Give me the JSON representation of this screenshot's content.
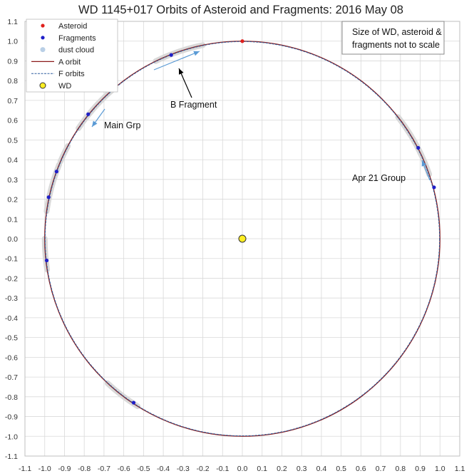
{
  "chart_data": {
    "type": "scatter",
    "title": "WD 1145+017 Orbits of Asteroid and Fragments: 2016 May 08",
    "xlim": [
      -1.1,
      1.1
    ],
    "ylim": [
      -1.1,
      1.1
    ],
    "x_ticks": [
      "-1.1",
      "-1.0",
      "-0.9",
      "-0.8",
      "-0.7",
      "-0.6",
      "-0.5",
      "-0.4",
      "-0.3",
      "-0.2",
      "-0.1",
      "0.0",
      "0.1",
      "0.2",
      "0.3",
      "0.4",
      "0.5",
      "0.6",
      "0.7",
      "0.8",
      "0.9",
      "1.0",
      "1.1"
    ],
    "y_ticks": [
      "-1.1",
      "-1.0",
      "-0.9",
      "-0.8",
      "-0.7",
      "-0.6",
      "-0.5",
      "-0.4",
      "-0.3",
      "-0.2",
      "-0.1",
      "0.0",
      "0.1",
      "0.2",
      "0.3",
      "0.4",
      "0.5",
      "0.6",
      "0.7",
      "0.8",
      "0.9",
      "1.0",
      "1.1"
    ],
    "grid": true,
    "legend_position": "top-left",
    "legend": [
      {
        "label": "Asteroid",
        "kind": "dot",
        "color": "#e0201c"
      },
      {
        "label": "Fragments",
        "kind": "dot",
        "color": "#1f1fc8"
      },
      {
        "label": "dust cloud",
        "kind": "dot",
        "color": "#b9cfe6"
      },
      {
        "label": "A orbit",
        "kind": "line",
        "color": "#8b1a1a"
      },
      {
        "label": "F orbits",
        "kind": "dash",
        "color": "#2f5f9f"
      },
      {
        "label": "WD",
        "kind": "wd",
        "color": "#ffee22"
      }
    ],
    "orbit_radius": 1.0,
    "asteroid": {
      "x": 0.0,
      "y": 1.0
    },
    "wd": {
      "x": 0.0,
      "y": 0.0
    },
    "fragments": [
      {
        "x": -0.36,
        "y": 0.93
      },
      {
        "x": -0.78,
        "y": 0.63
      },
      {
        "x": -0.94,
        "y": 0.34
      },
      {
        "x": -0.98,
        "y": 0.21
      },
      {
        "x": -0.99,
        "y": -0.11
      },
      {
        "x": -0.55,
        "y": -0.83
      },
      {
        "x": 0.89,
        "y": 0.46
      },
      {
        "x": 0.97,
        "y": 0.26
      }
    ],
    "dust_arcs_deg": [
      [
        101.5,
        116
      ],
      [
        130,
        146
      ],
      [
        152,
        157
      ],
      [
        158,
        172
      ],
      [
        180,
        189
      ],
      [
        227,
        238
      ],
      [
        19,
        26
      ],
      [
        25,
        38
      ]
    ],
    "annotations": {
      "note_line1": "Size of WD, asteroid &",
      "note_line2": "fragments not to scale",
      "b_fragment": "B Fragment",
      "main_grp": "Main Grp",
      "apr21": "Apr 21 Group"
    },
    "colors": {
      "orbit_a": "#8b1a1a",
      "orbit_f": "#2f5f9f",
      "dust": "#d9d9d9",
      "arrow": "#5b9bd5",
      "grid": "#d9d9d9",
      "axis": "#555555"
    }
  }
}
